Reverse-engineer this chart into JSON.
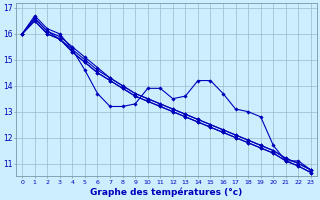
{
  "xlabel": "Graphe des températures (°c)",
  "background_color": "#cceeff",
  "grid_color": "#99bbcc",
  "line_color": "#0000bb",
  "x": [
    0,
    1,
    2,
    3,
    4,
    5,
    6,
    7,
    8,
    9,
    10,
    11,
    12,
    13,
    14,
    15,
    16,
    17,
    18,
    19,
    20,
    21,
    22,
    23
  ],
  "series": [
    [
      16.0,
      16.7,
      16.2,
      16.0,
      15.4,
      14.6,
      13.7,
      13.2,
      13.2,
      13.3,
      13.9,
      13.9,
      13.5,
      13.6,
      14.2,
      14.2,
      13.7,
      13.1,
      13.0,
      12.8,
      11.7,
      11.1,
      11.1,
      10.75
    ],
    [
      16.0,
      16.6,
      16.1,
      15.8,
      15.4,
      15.0,
      14.6,
      14.3,
      14.0,
      13.7,
      13.5,
      13.3,
      13.1,
      12.9,
      12.7,
      12.5,
      12.3,
      12.1,
      11.9,
      11.7,
      11.5,
      11.2,
      11.0,
      10.75
    ],
    [
      16.0,
      16.6,
      16.1,
      15.9,
      15.5,
      15.1,
      14.7,
      14.3,
      14.0,
      13.7,
      13.5,
      13.3,
      13.1,
      12.9,
      12.7,
      12.5,
      12.3,
      12.1,
      11.9,
      11.7,
      11.5,
      11.2,
      11.0,
      10.75
    ],
    [
      16.0,
      16.5,
      16.0,
      15.8,
      15.3,
      14.9,
      14.5,
      14.2,
      13.9,
      13.6,
      13.4,
      13.2,
      13.0,
      12.8,
      12.6,
      12.4,
      12.2,
      12.0,
      11.8,
      11.6,
      11.4,
      11.1,
      10.9,
      10.65
    ],
    [
      16.0,
      16.5,
      16.0,
      15.8,
      15.3,
      14.9,
      14.5,
      14.2,
      13.9,
      13.6,
      13.4,
      13.2,
      13.0,
      12.8,
      12.6,
      12.4,
      12.2,
      12.0,
      11.8,
      11.6,
      11.4,
      11.1,
      10.9,
      10.65
    ]
  ],
  "ylim": [
    10.5,
    17.2
  ],
  "yticks": [
    11,
    12,
    13,
    14,
    15,
    16,
    17
  ],
  "marker": "D",
  "marker_size": 1.8,
  "linewidth": 0.8
}
